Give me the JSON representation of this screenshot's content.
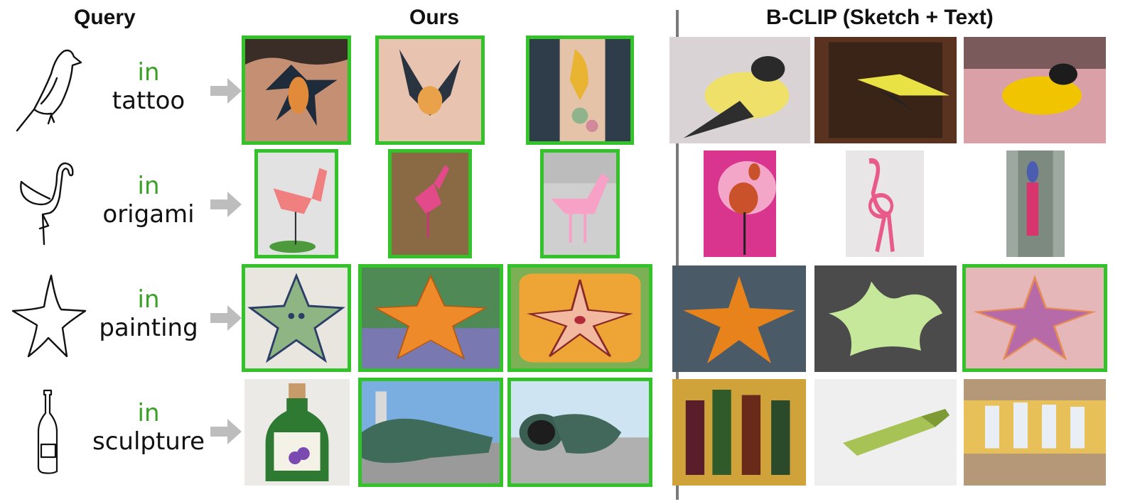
{
  "headers": {
    "query": "Query",
    "ours": "Ours",
    "bclip": "B-CLIP (Sketch + Text)"
  },
  "colors": {
    "correct_border": "#33c22a",
    "in_word": "#3aa027",
    "divider": "#7a7a7a",
    "arrow": "#bdbdbd"
  },
  "rows": [
    {
      "sketch": "bird-sketch",
      "in_label": "in",
      "domain": "tattoo",
      "ours": [
        "bird-tattoo-photo",
        "bird-tattoo-photo",
        "bird-tattoo-photo"
      ],
      "ours_correct": [
        true,
        true,
        true
      ],
      "bclip": [
        "yellow-bird-photo",
        "yellow-bird-photo",
        "yellow-bird-photo"
      ],
      "bclip_correct": [
        false,
        false,
        false
      ]
    },
    {
      "sketch": "flamingo-sketch",
      "in_label": "in",
      "domain": "origami",
      "ours": [
        "pink-origami-flamingo-photo",
        "pink-origami-flamingo-photo",
        "pink-origami-flamingo-photo"
      ],
      "ours_correct": [
        true,
        true,
        true
      ],
      "bclip": [
        "flamingo-mural-photo",
        "flamingo-bead-craft-photo",
        "flamingo-statue-photo"
      ],
      "bclip_correct": [
        false,
        false,
        false
      ]
    },
    {
      "sketch": "starfish-sketch",
      "in_label": "in",
      "domain": "painting",
      "ours": [
        "starfish-painting-photo",
        "starfish-painting-photo",
        "starfish-painting-photo"
      ],
      "ours_correct": [
        true,
        true,
        true
      ],
      "bclip": [
        "starfish-mosaic-photo",
        "starfish-plush-photo",
        "starfish-painting-photo"
      ],
      "bclip_correct": [
        false,
        false,
        true
      ]
    },
    {
      "sketch": "bottle-sketch",
      "in_label": "in",
      "domain": "sculpture",
      "ours": [
        "bottle-plush-photo",
        "bottle-sculpture-photo",
        "bottle-sculpture-photo"
      ],
      "ours_correct": [
        false,
        true,
        true
      ],
      "bclip": [
        "wine-bottles-painting-photo",
        "bottle-painting-photo",
        "bottles-graffiti-photo"
      ],
      "bclip_correct": [
        false,
        false,
        false
      ]
    }
  ]
}
